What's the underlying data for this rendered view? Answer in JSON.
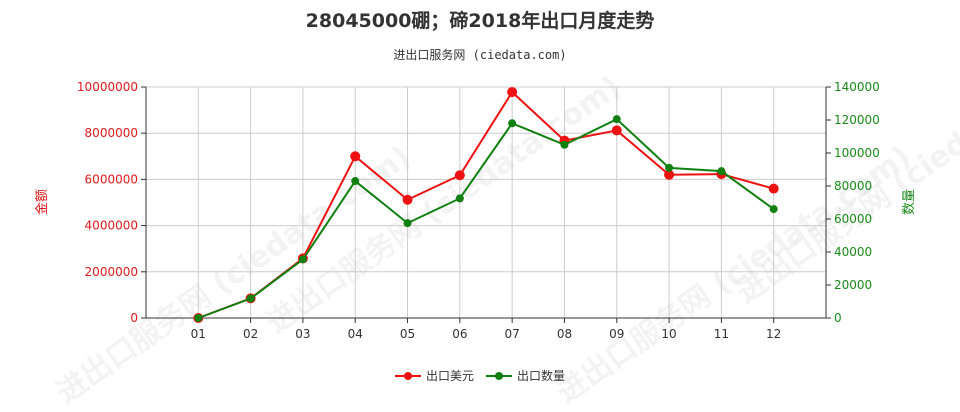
{
  "title": "28045000硼；碲2018年出口月度走势",
  "subtitle": "进出口服务网 (ciedata.com)",
  "watermark": "进出口服务网 (ciedata.com)",
  "colors": {
    "left_axis": "#e31a1c",
    "right_axis": "#1a8a1a",
    "series_usd": "#ee1111",
    "series_qty": "#108010",
    "grid": "#cccccc",
    "axis": "#333333"
  },
  "chart_data": {
    "type": "line",
    "categories": [
      "01",
      "02",
      "03",
      "04",
      "05",
      "06",
      "07",
      "08",
      "09",
      "10",
      "11",
      "12"
    ],
    "y_left": {
      "label": "金额",
      "ylim": [
        0,
        10000000
      ],
      "ticks": [
        0,
        2000000,
        4000000,
        6000000,
        8000000,
        10000000
      ],
      "tick_labels": [
        "0",
        "2000000",
        "4000000",
        "6000000",
        "8000000",
        "10000000"
      ]
    },
    "y_right": {
      "label": "数量",
      "ylim": [
        0,
        140000
      ],
      "ticks": [
        0,
        20000,
        40000,
        60000,
        80000,
        100000,
        120000,
        140000
      ],
      "tick_labels": [
        "0",
        "20000",
        "40000",
        "60000",
        "80000",
        "100000",
        "120000",
        "140000"
      ]
    },
    "series": [
      {
        "name": "出口美元",
        "axis": "left",
        "values": [
          0,
          850000,
          2580000,
          7000000,
          5120000,
          6180000,
          9780000,
          7680000,
          8120000,
          6200000,
          6230000,
          5600000
        ]
      },
      {
        "name": "出口数量",
        "axis": "right",
        "values": [
          0,
          11800,
          35500,
          83000,
          57500,
          72500,
          118000,
          105000,
          120500,
          91000,
          89000,
          66000
        ]
      }
    ],
    "grid": true,
    "legend_position": "bottom-center"
  }
}
